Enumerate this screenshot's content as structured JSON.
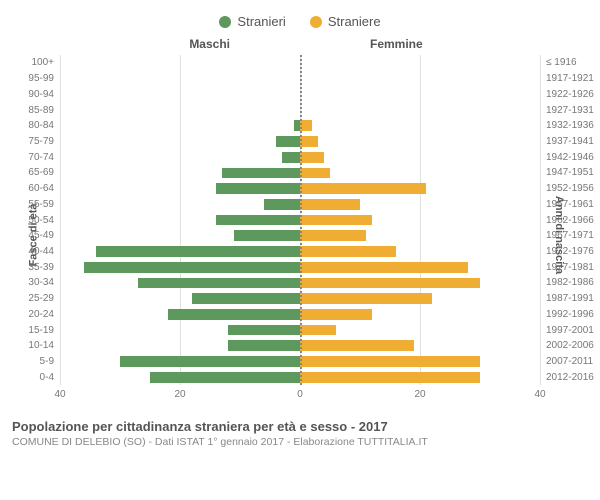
{
  "legend": {
    "male": {
      "label": "Stranieri",
      "color": "#5d995d"
    },
    "female": {
      "label": "Straniere",
      "color": "#f0ad33"
    }
  },
  "columns": {
    "left": "Maschi",
    "right": "Femmine"
  },
  "y_axes": {
    "left_label": "Fasce di età",
    "right_label": "Anni di nascita"
  },
  "chart": {
    "type": "population-pyramid",
    "x_max": 40,
    "x_ticks_left": [
      40,
      20,
      0
    ],
    "x_ticks_right": [
      0,
      20,
      40
    ],
    "grid_positions": [
      -40,
      -20,
      0,
      20,
      40
    ],
    "grid_color": "#e0e0e0",
    "background_color": "#ffffff",
    "center_line_color": "#888888",
    "bar_colors": {
      "male": "#5d995d",
      "female": "#f0ad33"
    },
    "label_fontsize": 10,
    "axis_label_fontsize": 11,
    "rows": [
      {
        "age": "100+",
        "years": "≤ 1916",
        "m": 0,
        "f": 0
      },
      {
        "age": "95-99",
        "years": "1917-1921",
        "m": 0,
        "f": 0
      },
      {
        "age": "90-94",
        "years": "1922-1926",
        "m": 0,
        "f": 0
      },
      {
        "age": "85-89",
        "years": "1927-1931",
        "m": 0,
        "f": 0
      },
      {
        "age": "80-84",
        "years": "1932-1936",
        "m": 1,
        "f": 2
      },
      {
        "age": "75-79",
        "years": "1937-1941",
        "m": 4,
        "f": 3
      },
      {
        "age": "70-74",
        "years": "1942-1946",
        "m": 3,
        "f": 4
      },
      {
        "age": "65-69",
        "years": "1947-1951",
        "m": 13,
        "f": 5
      },
      {
        "age": "60-64",
        "years": "1952-1956",
        "m": 14,
        "f": 21
      },
      {
        "age": "55-59",
        "years": "1957-1961",
        "m": 6,
        "f": 10
      },
      {
        "age": "50-54",
        "years": "1962-1966",
        "m": 14,
        "f": 12
      },
      {
        "age": "45-49",
        "years": "1967-1971",
        "m": 11,
        "f": 11
      },
      {
        "age": "40-44",
        "years": "1972-1976",
        "m": 34,
        "f": 16
      },
      {
        "age": "35-39",
        "years": "1977-1981",
        "m": 36,
        "f": 28
      },
      {
        "age": "30-34",
        "years": "1982-1986",
        "m": 27,
        "f": 30
      },
      {
        "age": "25-29",
        "years": "1987-1991",
        "m": 18,
        "f": 22
      },
      {
        "age": "20-24",
        "years": "1992-1996",
        "m": 22,
        "f": 12
      },
      {
        "age": "15-19",
        "years": "1997-2001",
        "m": 12,
        "f": 6
      },
      {
        "age": "10-14",
        "years": "2002-2006",
        "m": 12,
        "f": 19
      },
      {
        "age": "5-9",
        "years": "2007-2011",
        "m": 30,
        "f": 30
      },
      {
        "age": "0-4",
        "years": "2012-2016",
        "m": 25,
        "f": 30
      }
    ]
  },
  "footer": {
    "title": "Popolazione per cittadinanza straniera per età e sesso - 2017",
    "subtitle": "COMUNE DI DELEBIO (SO) - Dati ISTAT 1° gennaio 2017 - Elaborazione TUTTITALIA.IT"
  }
}
